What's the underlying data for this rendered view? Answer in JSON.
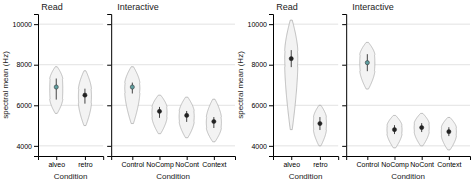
{
  "chart_data": [
    {
      "type": "violin",
      "title": "Read",
      "xlabel": "Condition",
      "ylabel": "spectral mean (Hz)",
      "categories": [
        "alveo",
        "retro"
      ],
      "values": [
        6900,
        6500
      ],
      "q1": [
        6300,
        6100
      ],
      "q3": [
        7300,
        6800
      ],
      "low": [
        5600,
        5000
      ],
      "high": [
        7900,
        7700
      ],
      "colors": [
        "#5f9ea0",
        "#222222"
      ],
      "ylim": [
        3500,
        10500
      ],
      "yticks": [
        4000,
        6000,
        8000,
        10000
      ],
      "grid": true
    },
    {
      "type": "violin",
      "title": "Interactive",
      "xlabel": "Condition",
      "categories": [
        "Control",
        "NoComp",
        "NoCont",
        "Context"
      ],
      "values": [
        6900,
        5700,
        5500,
        5200
      ],
      "q1": [
        6600,
        5400,
        5200,
        4900
      ],
      "q3": [
        7100,
        5900,
        5700,
        5400
      ],
      "low": [
        5100,
        4600,
        4400,
        4200
      ],
      "high": [
        7900,
        6500,
        6400,
        6300
      ],
      "colors": [
        "#5f9ea0",
        "#222222",
        "#222222",
        "#222222"
      ],
      "ylim": [
        3500,
        10500
      ],
      "yticks": [
        4000,
        6000,
        8000,
        10000
      ],
      "grid": true,
      "tick_labels": "x"
    },
    {
      "type": "violin",
      "title": "Read",
      "xlabel": "Condition",
      "ylabel": "spectral mean (Hz)",
      "categories": [
        "alveo",
        "retro"
      ],
      "values": [
        8300,
        5100
      ],
      "q1": [
        7900,
        4800
      ],
      "q3": [
        8700,
        5400
      ],
      "low": [
        4800,
        4000
      ],
      "high": [
        10200,
        6000
      ],
      "colors": [
        "#222222",
        "#222222"
      ],
      "ylim": [
        3500,
        10500
      ],
      "yticks": [
        4000,
        6000,
        8000,
        10000
      ],
      "grid": true
    },
    {
      "type": "violin",
      "title": "Interactive",
      "xlabel": "Condition",
      "categories": [
        "Control",
        "NoComp",
        "NoCont",
        "Context"
      ],
      "values": [
        8100,
        4800,
        4900,
        4700
      ],
      "q1": [
        7700,
        4600,
        4700,
        4500
      ],
      "q3": [
        8500,
        5000,
        5100,
        4900
      ],
      "low": [
        6800,
        3900,
        4000,
        3800
      ],
      "high": [
        9100,
        5500,
        5600,
        5400
      ],
      "colors": [
        "#5f9ea0",
        "#222222",
        "#222222",
        "#222222"
      ],
      "ylim": [
        3500,
        10500
      ],
      "yticks": [
        4000,
        6000,
        8000,
        10000
      ],
      "grid": true,
      "tick_labels": "x"
    }
  ]
}
